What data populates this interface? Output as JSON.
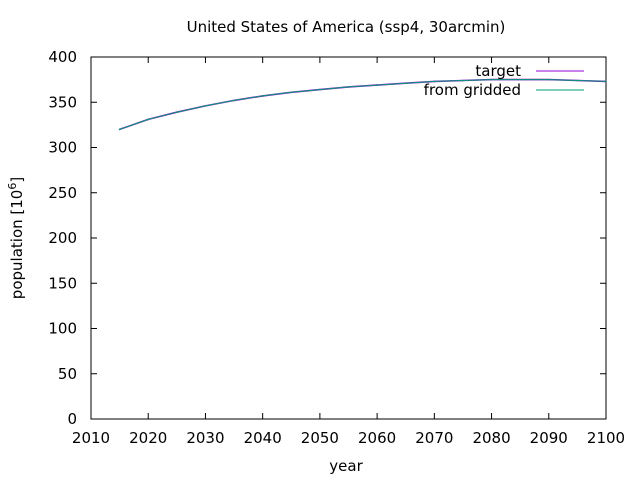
{
  "chart_data": {
    "type": "line",
    "title": "United States of America (ssp4, 30arcmin)",
    "xlabel": "year",
    "ylabel_main": "population [10",
    "ylabel_exp": "6",
    "ylabel_close": "]",
    "xlim": [
      2010,
      2100
    ],
    "ylim": [
      0,
      400
    ],
    "xticks": [
      "2010",
      "2020",
      "2030",
      "2040",
      "2050",
      "2060",
      "2070",
      "2080",
      "2090",
      "2100"
    ],
    "yticks": [
      "0",
      "50",
      "100",
      "150",
      "200",
      "250",
      "300",
      "350",
      "400"
    ],
    "grid": false,
    "legend_position": "top-right",
    "series": [
      {
        "name": "target",
        "color": "#9400d3",
        "x": [
          2015,
          2020,
          2025,
          2030,
          2035,
          2040,
          2045,
          2050,
          2055,
          2060,
          2065,
          2070,
          2075,
          2080,
          2085,
          2090,
          2095,
          2100
        ],
        "y": [
          320,
          331,
          339,
          346,
          352,
          357,
          361,
          364,
          367,
          369,
          371,
          373,
          374,
          375,
          375,
          375,
          374,
          373
        ]
      },
      {
        "name": "from gridded",
        "color": "#009e73",
        "x": [
          2015,
          2020,
          2025,
          2030,
          2035,
          2040,
          2045,
          2050,
          2055,
          2060,
          2065,
          2070,
          2075,
          2080,
          2085,
          2090,
          2095,
          2100
        ],
        "y": [
          320,
          331,
          339,
          346,
          352,
          357,
          361,
          364,
          367,
          369,
          371,
          373,
          374,
          375,
          375,
          375,
          374,
          373
        ]
      }
    ]
  }
}
